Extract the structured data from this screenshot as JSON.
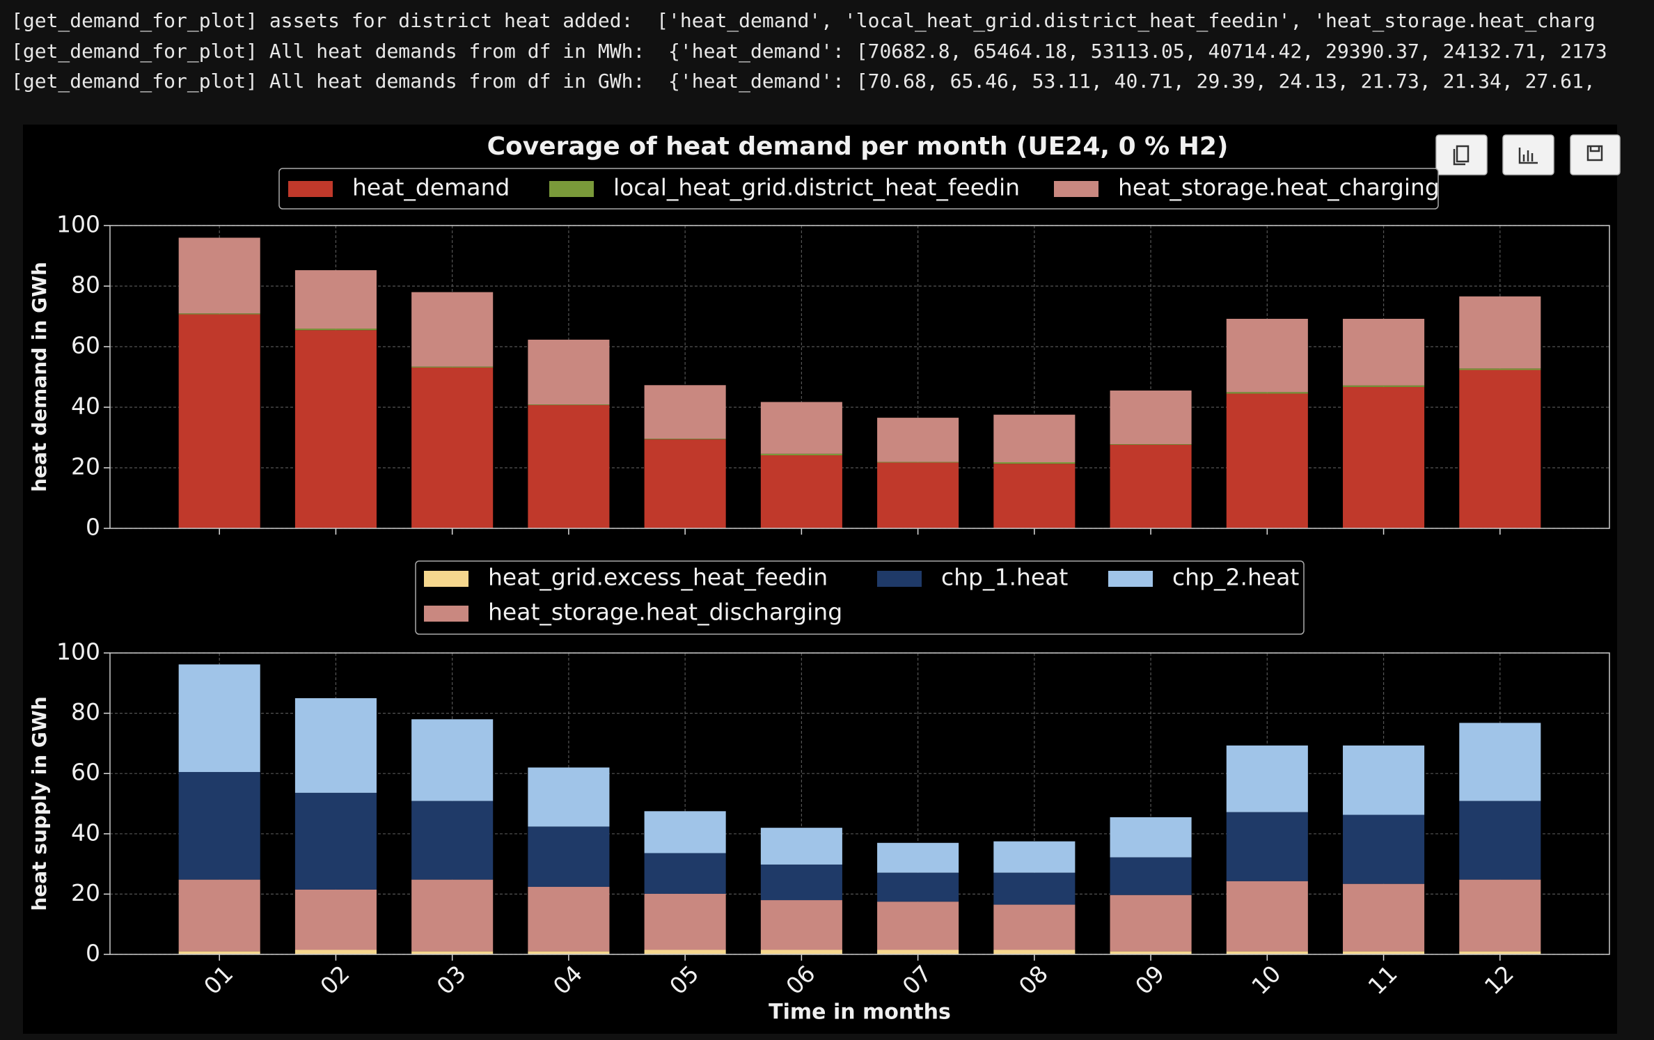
{
  "console_lines": [
    "[get_demand_for_plot] assets for district heat added:  ['heat_demand', 'local_heat_grid.district_heat_feedin', 'heat_storage.heat_charg",
    "[get_demand_for_plot] All heat demands from df in MWh:  {'heat_demand': [70682.8, 65464.18, 53113.05, 40714.42, 29390.37, 24132.71, 2173",
    "[get_demand_for_plot] All heat demands from df in GWh:  {'heat_demand': [70.68, 65.46, 53.11, 40.71, 29.39, 24.13, 21.73, 21.34, 27.61,"
  ],
  "chart_data": [
    {
      "type": "bar",
      "stacked": true,
      "grid": true,
      "title": "Coverage of heat demand per month (UE24, 0 % H2)",
      "ylabel": "heat demand in GWh",
      "ylim": [
        0,
        100
      ],
      "yticks": [
        0,
        20,
        40,
        60,
        80,
        100
      ],
      "series": [
        {
          "name": "heat_demand",
          "color": "#c0392b",
          "values": [
            70.68,
            65.46,
            53.11,
            40.71,
            29.39,
            24.13,
            21.73,
            21.34,
            27.61,
            44.5,
            46.7,
            52.3
          ]
        },
        {
          "name": "local_heat_grid.district_heat_feedin",
          "color": "#7a9a3a",
          "values": [
            0.3,
            0.5,
            0.3,
            0.2,
            0.2,
            0.5,
            0.2,
            0.5,
            0.2,
            0.5,
            0.5,
            0.5
          ]
        },
        {
          "name": "heat_storage.heat_charging",
          "color": "#c98880",
          "values": [
            25.0,
            19.3,
            24.6,
            21.4,
            17.7,
            17.1,
            14.6,
            15.7,
            17.7,
            24.2,
            22.0,
            23.8
          ]
        }
      ]
    },
    {
      "type": "bar",
      "stacked": true,
      "grid": true,
      "xlabel": "Time in months",
      "ylabel": "heat supply in GWh",
      "categories": [
        "01",
        "02",
        "03",
        "04",
        "05",
        "06",
        "07",
        "08",
        "09",
        "10",
        "11",
        "12"
      ],
      "ylim": [
        0,
        100
      ],
      "yticks": [
        0,
        20,
        40,
        60,
        80,
        100
      ],
      "series": [
        {
          "name": "heat_grid.excess_heat_feedin",
          "color": "#f5d78e",
          "values": [
            1,
            1.5,
            1,
            1,
            1.5,
            1.5,
            1.5,
            1.5,
            1,
            1,
            1,
            1
          ]
        },
        {
          "name": "heat_storage.heat_discharging",
          "color": "#c98880",
          "values": [
            23.8,
            20,
            23.8,
            21.4,
            18.6,
            16.5,
            16,
            15,
            18.7,
            23.3,
            22.4,
            23.8
          ]
        },
        {
          "name": "chp_1.heat",
          "color": "#1f3a68",
          "values": [
            35.7,
            32.1,
            26.1,
            20,
            13.5,
            11.8,
            9.6,
            10.6,
            12.5,
            22.9,
            22.9,
            26.1
          ]
        },
        {
          "name": "chp_2.heat",
          "color": "#a0c4e8",
          "values": [
            35.7,
            31.4,
            27.1,
            19.6,
            13.9,
            12.2,
            9.9,
            10.4,
            13.3,
            22.1,
            23.0,
            25.9
          ]
        }
      ]
    }
  ]
}
